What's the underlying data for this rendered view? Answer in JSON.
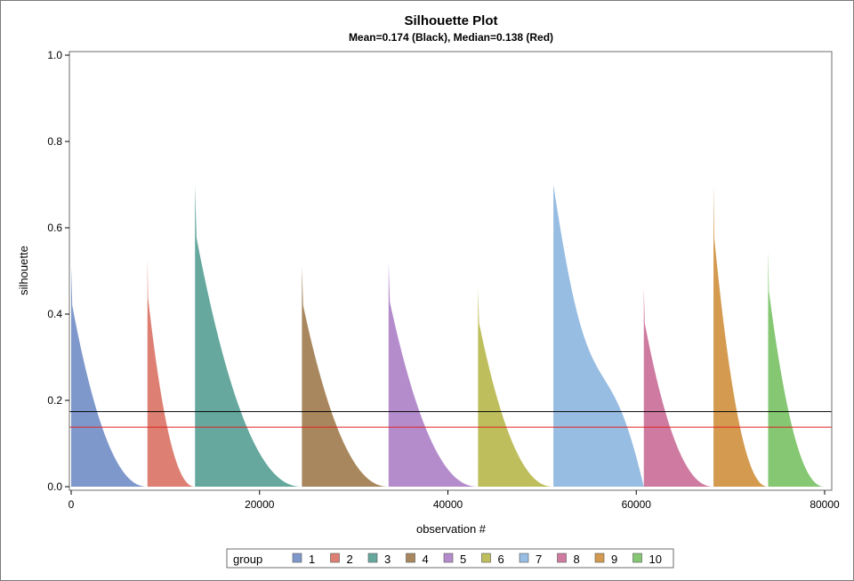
{
  "chart_data": {
    "type": "area",
    "title": "Silhouette Plot",
    "subtitle": "Mean=0.174 (Black), Median=0.138 (Red)",
    "xlabel": "observation #",
    "ylabel": "silhouette",
    "xlim": [
      0,
      80000
    ],
    "ylim": [
      0,
      1.0
    ],
    "xticks": [
      0,
      20000,
      40000,
      60000,
      80000
    ],
    "xtick_labels": [
      "0",
      "20000",
      "40000",
      "60000",
      "80000"
    ],
    "yticks": [
      0,
      0.2,
      0.4,
      0.6,
      0.8,
      1.0
    ],
    "ytick_labels": [
      "0.0",
      "0.2",
      "0.4",
      "0.6",
      "0.8",
      "1.0"
    ],
    "grid": false,
    "reference_lines": [
      {
        "label": "Mean",
        "value": 0.174,
        "color": "#000000"
      },
      {
        "label": "Median",
        "value": 0.138,
        "color": "#e02020"
      }
    ],
    "legend": {
      "title": "group",
      "placement": "bottom"
    },
    "series": [
      {
        "name": "1",
        "color": "#7f98cc",
        "x_start": 0,
        "x_end": 8100,
        "peak": 0.51,
        "shape": "convex"
      },
      {
        "name": "2",
        "color": "#dd7f72",
        "x_start": 8100,
        "x_end": 13150,
        "peak": 0.53,
        "shape": "convex"
      },
      {
        "name": "3",
        "color": "#66a89e",
        "x_start": 13150,
        "x_end": 24500,
        "peak": 0.7,
        "shape": "convex"
      },
      {
        "name": "4",
        "color": "#a9875e",
        "x_start": 24500,
        "x_end": 33700,
        "peak": 0.51,
        "shape": "convex"
      },
      {
        "name": "5",
        "color": "#b48ccc",
        "x_start": 33700,
        "x_end": 43200,
        "peak": 0.52,
        "shape": "convex"
      },
      {
        "name": "6",
        "color": "#bebe5c",
        "x_start": 43200,
        "x_end": 51200,
        "peak": 0.46,
        "shape": "convex"
      },
      {
        "name": "7",
        "color": "#98bde2",
        "x_start": 51200,
        "x_end": 60800,
        "peak": 0.7,
        "shape": "sigmoid"
      },
      {
        "name": "8",
        "color": "#cf7ba1",
        "x_start": 60800,
        "x_end": 68200,
        "peak": 0.46,
        "shape": "convex"
      },
      {
        "name": "9",
        "color": "#d49a50",
        "x_start": 68200,
        "x_end": 74000,
        "peak": 0.7,
        "shape": "convex"
      },
      {
        "name": "10",
        "color": "#85c773",
        "x_start": 74000,
        "x_end": 80000,
        "peak": 0.55,
        "shape": "convex"
      }
    ]
  }
}
